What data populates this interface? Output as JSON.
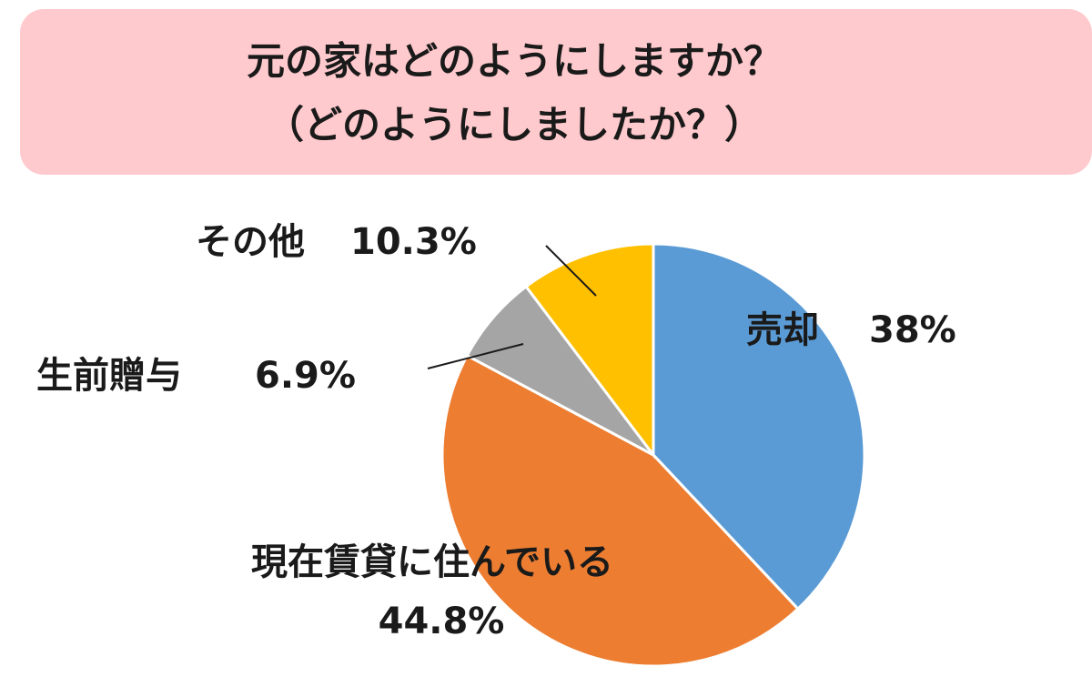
{
  "chart_data": {
    "type": "pie",
    "title": "元の家はどのようにしますか？",
    "subtitle": "（どのようにしましたか？）",
    "categories": [
      "売却",
      "現在賃貸に住んでいる",
      "生前贈与",
      "その他"
    ],
    "values": [
      38,
      44.8,
      6.9,
      10.3
    ],
    "value_labels": [
      "38%",
      "44.8%",
      "6.9%",
      "10.3%"
    ],
    "colors": [
      "#5b9bd5",
      "#ed7d31",
      "#a5a5a5",
      "#ffc000"
    ]
  }
}
